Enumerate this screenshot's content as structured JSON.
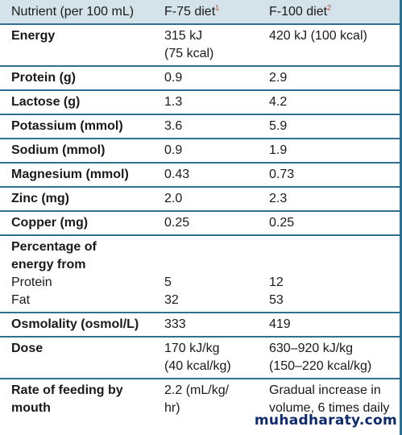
{
  "header": {
    "col1": "Nutrient (per 100 mL)",
    "col2": "F-75 diet",
    "col2_note": "1",
    "col3": "F-100 diet",
    "col3_note": "2"
  },
  "rows": {
    "energy": {
      "label": "Energy",
      "f75": "315 kJ",
      "f75b": "(75 kcal)",
      "f100": "420 kJ (100 kcal)"
    },
    "protein": {
      "label": "Protein (g)",
      "f75": "0.9",
      "f100": "2.9"
    },
    "lactose": {
      "label": "Lactose (g)",
      "f75": "1.3",
      "f100": "4.2"
    },
    "potassium": {
      "label": "Potassium (mmol)",
      "f75": "3.6",
      "f100": "5.9"
    },
    "sodium": {
      "label": "Sodium (mmol)",
      "f75": "0.9",
      "f100": "1.9"
    },
    "magnesium": {
      "label": "Magnesium (mmol)",
      "f75": "0.43",
      "f100": "0.73"
    },
    "zinc": {
      "label": "Zinc (mg)",
      "f75": "2.0",
      "f100": "2.3"
    },
    "copper": {
      "label": "Copper (mg)",
      "f75": "0.25",
      "f100": "0.25"
    },
    "energy_from": {
      "label_a": "Percentage of",
      "label_b": "energy from",
      "sub1": "Protein",
      "sub1_f75": "5",
      "sub1_f100": "12",
      "sub2": "Fat",
      "sub2_f75": "32",
      "sub2_f100": "53"
    },
    "osmolality": {
      "label": "Osmolality (osmol/L)",
      "f75": "333",
      "f100": "419"
    },
    "dose": {
      "label": "Dose",
      "f75": "170 kJ/kg",
      "f75b": "(40 kcal/kg)",
      "f100": "630–920 kJ/kg",
      "f100b": "(150–220 kcal/kg)"
    },
    "rate": {
      "label_a": "Rate of feeding by",
      "label_b": "mouth",
      "f75": "2.2 (mL/kg/",
      "f75b": "hr)",
      "f100": "Gradual increase in",
      "f100b": "volume, 6 times daily"
    }
  },
  "watermark": "muhadharaty.com",
  "colors": {
    "header_bg": "#d4e3ea",
    "rule": "#2f6f8f",
    "footnote": "#c43b2e",
    "watermark": "#0e2a6e"
  }
}
